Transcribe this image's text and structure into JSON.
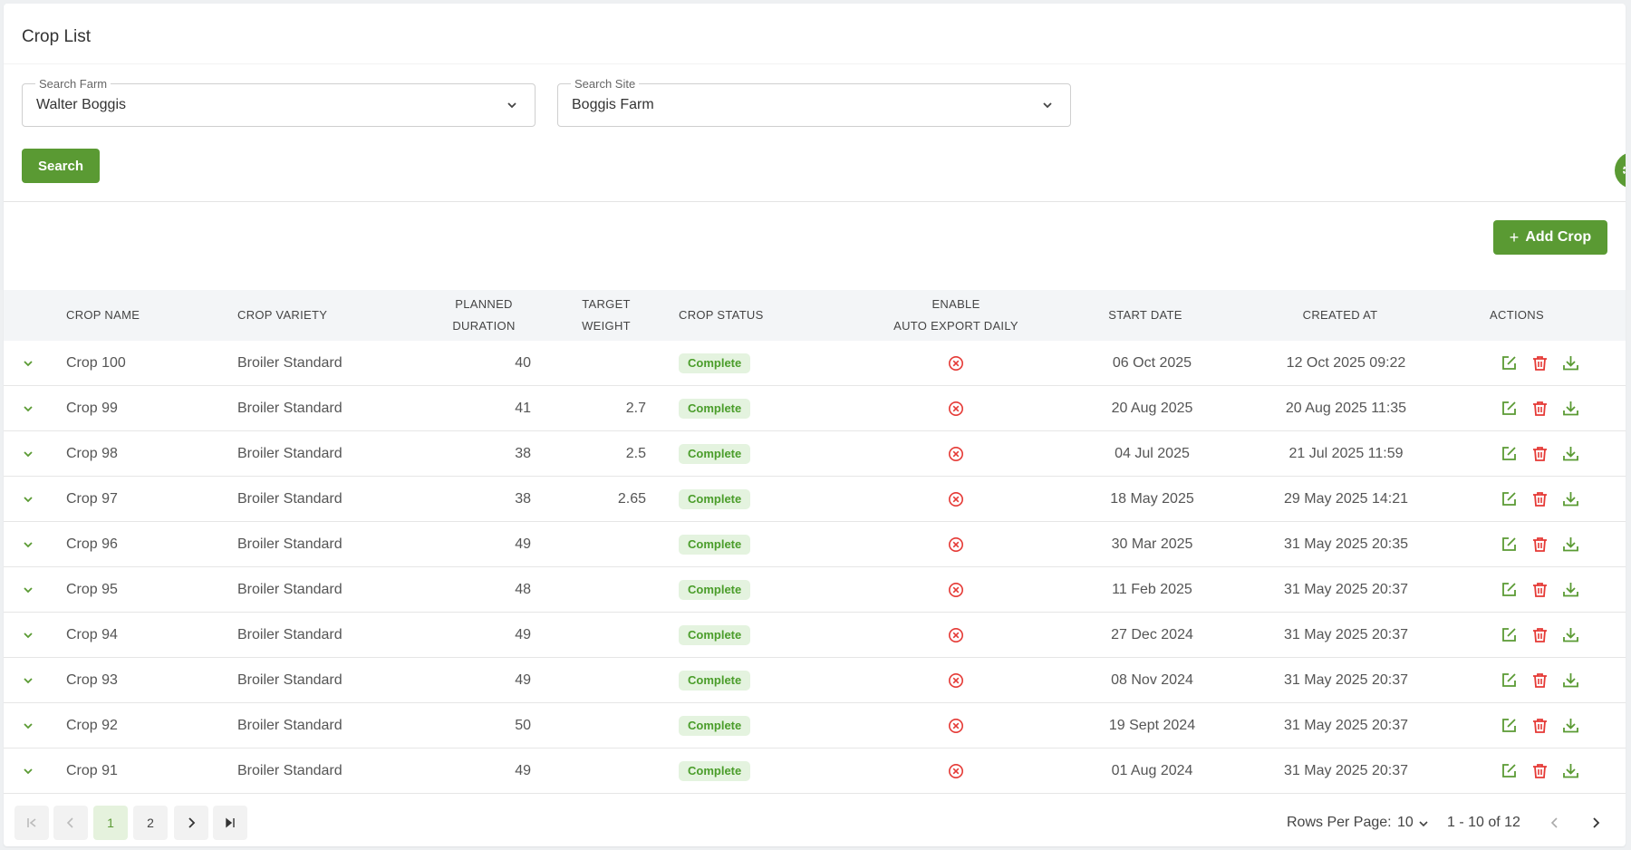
{
  "page": {
    "title": "Crop List"
  },
  "filters": {
    "farm": {
      "label": "Search Farm",
      "value": "Walter Boggis"
    },
    "site": {
      "label": "Search Site",
      "value": "Boggis Farm"
    },
    "search_label": "Search"
  },
  "toolbar": {
    "add_label": "Add Crop",
    "add_icon": "+"
  },
  "colors": {
    "primary": "#5a9a33",
    "status_bg": "#e4f3df",
    "status_text": "#4a9d2a",
    "danger": "#e53935"
  },
  "table": {
    "headers": {
      "crop_name": "CROP NAME",
      "crop_variety": "CROP VARIETY",
      "planned_duration_1": "PLANNED",
      "planned_duration_2": "DURATION",
      "target_weight_1": "TARGET",
      "target_weight_2": "WEIGHT",
      "crop_status": "CROP STATUS",
      "auto_export_1": "ENABLE",
      "auto_export_2": "AUTO EXPORT DAILY",
      "start_date": "START DATE",
      "created_at": "CREATED AT",
      "actions": "ACTIONS"
    },
    "rows": [
      {
        "name": "Crop 100",
        "variety": "Broiler Standard",
        "duration": "40",
        "weight": "",
        "status": "Complete",
        "start": "06 Oct 2025",
        "created": "12 Oct 2025 09:22"
      },
      {
        "name": "Crop 99",
        "variety": "Broiler Standard",
        "duration": "41",
        "weight": "2.7",
        "status": "Complete",
        "start": "20 Aug 2025",
        "created": "20 Aug 2025 11:35"
      },
      {
        "name": "Crop 98",
        "variety": "Broiler Standard",
        "duration": "38",
        "weight": "2.5",
        "status": "Complete",
        "start": "04 Jul 2025",
        "created": "21 Jul 2025 11:59"
      },
      {
        "name": "Crop 97",
        "variety": "Broiler Standard",
        "duration": "38",
        "weight": "2.65",
        "status": "Complete",
        "start": "18 May 2025",
        "created": "29 May 2025 14:21"
      },
      {
        "name": "Crop 96",
        "variety": "Broiler Standard",
        "duration": "49",
        "weight": "",
        "status": "Complete",
        "start": "30 Mar 2025",
        "created": "31 May 2025 20:35"
      },
      {
        "name": "Crop 95",
        "variety": "Broiler Standard",
        "duration": "48",
        "weight": "",
        "status": "Complete",
        "start": "11 Feb 2025",
        "created": "31 May 2025 20:37"
      },
      {
        "name": "Crop 94",
        "variety": "Broiler Standard",
        "duration": "49",
        "weight": "",
        "status": "Complete",
        "start": "27 Dec 2024",
        "created": "31 May 2025 20:37"
      },
      {
        "name": "Crop 93",
        "variety": "Broiler Standard",
        "duration": "49",
        "weight": "",
        "status": "Complete",
        "start": "08 Nov 2024",
        "created": "31 May 2025 20:37"
      },
      {
        "name": "Crop 92",
        "variety": "Broiler Standard",
        "duration": "50",
        "weight": "",
        "status": "Complete",
        "start": "19 Sept 2024",
        "created": "31 May 2025 20:37"
      },
      {
        "name": "Crop 91",
        "variety": "Broiler Standard",
        "duration": "49",
        "weight": "",
        "status": "Complete",
        "start": "01 Aug 2024",
        "created": "31 May 2025 20:37"
      }
    ]
  },
  "pagination": {
    "pages": [
      "1",
      "2"
    ],
    "current": "1",
    "rows_per_page_label": "Rows Per Page:",
    "rows_per_page": "10",
    "range": "1 - 10 of 12"
  }
}
